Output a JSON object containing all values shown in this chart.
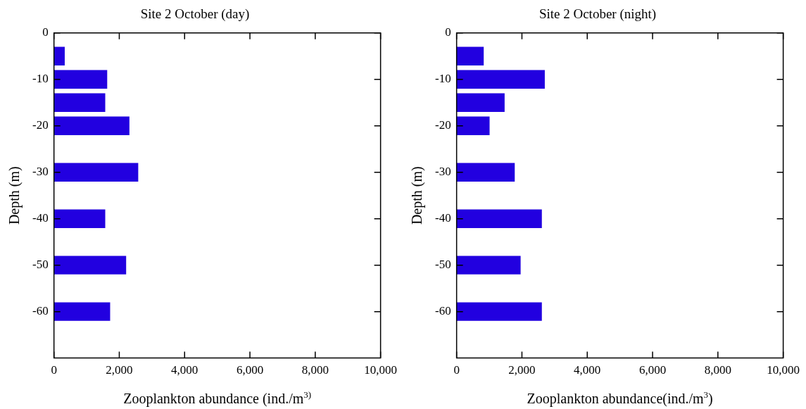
{
  "chart_data": [
    {
      "type": "bar",
      "orientation": "horizontal",
      "title": "Site 2 October (day)",
      "xlabel": "Zooplankton abundance (ind./m$^{3)}$",
      "ylabel": "Depth (m)",
      "x": [
        -5,
        -10,
        -15,
        -20,
        -30,
        -40,
        -50,
        -60
      ],
      "values": [
        330,
        1630,
        1570,
        2310,
        2580,
        1570,
        2210,
        1720
      ],
      "color": "#2200e0",
      "xlim": [
        0,
        10000
      ],
      "xticks": [
        0,
        {
          "value": 2000,
          "label": "2,000"
        },
        {
          "value": 4000,
          "label": "4,000"
        },
        {
          "value": 6000,
          "label": "6,000"
        },
        {
          "value": 8000,
          "label": "8,000"
        },
        {
          "value": 10000,
          "label": "10,000"
        }
      ],
      "ylim": [
        -70,
        0
      ],
      "yticks": [
        0,
        -10,
        -20,
        -30,
        -40,
        -50,
        -60
      ]
    },
    {
      "type": "bar",
      "orientation": "horizontal",
      "title": "Site 2 October (night)",
      "xlabel": "Zooplankton abundance(ind./m$^{3}$)",
      "ylabel": "Depth (m)",
      "x": [
        -5,
        -10,
        -15,
        -20,
        -30,
        -40,
        -50,
        -60
      ],
      "values": [
        830,
        2700,
        1470,
        1010,
        1780,
        2610,
        1960,
        2610
      ],
      "color": "#2200e0",
      "xlim": [
        0,
        10000
      ],
      "xticks": [
        0,
        {
          "value": 2000,
          "label": "2,000"
        },
        {
          "value": 4000,
          "label": "4,000"
        },
        {
          "value": 6000,
          "label": "6,000"
        },
        {
          "value": 8000,
          "label": "8,000"
        },
        {
          "value": 10000,
          "label": "10,000"
        }
      ],
      "ylim": [
        -70,
        0
      ],
      "yticks": [
        0,
        -10,
        -20,
        -30,
        -40,
        -50,
        -60
      ]
    }
  ]
}
